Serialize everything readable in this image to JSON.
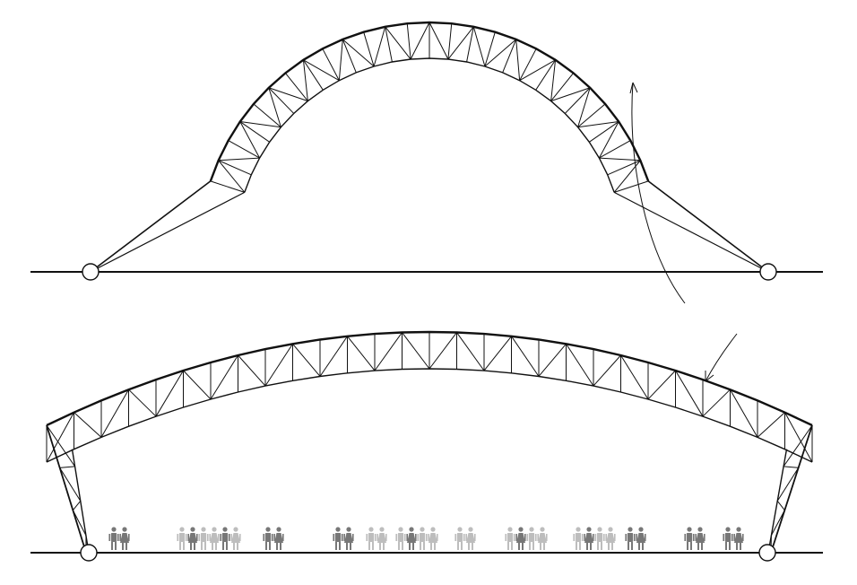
{
  "figure": {
    "panels": [
      {
        "id": "semicircular-arch-truss",
        "ground": true,
        "supports": "pinned"
      },
      {
        "id": "shallow-arch-truss-on-column-trusses",
        "ground": true,
        "supports": "pinned"
      }
    ],
    "callout": {
      "from": "semicircular-arch-truss",
      "to": "shallow-arch-truss-on-column-trusses"
    },
    "people_groups": [
      {
        "count": 2,
        "tone": "dark"
      },
      {
        "count": 6,
        "tone": "mixed"
      },
      {
        "count": 2,
        "tone": "dark"
      },
      {
        "count": 2,
        "tone": "dark"
      },
      {
        "count": 2,
        "tone": "light"
      },
      {
        "count": 4,
        "tone": "mixed"
      },
      {
        "count": 2,
        "tone": "light"
      },
      {
        "count": 4,
        "tone": "mixed"
      },
      {
        "count": 4,
        "tone": "mixed"
      },
      {
        "count": 2,
        "tone": "dark"
      },
      {
        "count": 2,
        "tone": "dark"
      },
      {
        "count": 2,
        "tone": "dark"
      }
    ],
    "colors": {
      "line": "#111111",
      "person_dark": "#777777",
      "person_light": "#bdbdbd",
      "support_fill": "#ffffff"
    }
  }
}
